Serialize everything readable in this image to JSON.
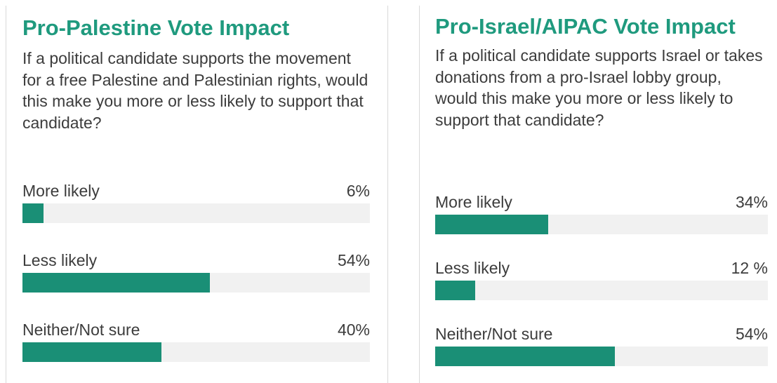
{
  "colors": {
    "accent": "#1f9a7e",
    "bar": "#1a8f76",
    "track": "#f1f1f1",
    "text": "#3c3c3c"
  },
  "chart_data": [
    {
      "type": "bar",
      "orientation": "horizontal",
      "title": "Pro-Palestine Vote Impact",
      "question": "If a political candidate supports the movement for a free Palestine and Palestinian rights, would this make you more or less likely to support that candidate?",
      "categories": [
        "More likely",
        "Less likely",
        "Neither/Not sure"
      ],
      "values": [
        6,
        54,
        40
      ],
      "value_labels": [
        "6%",
        "54%",
        "40%"
      ],
      "xlim": [
        0,
        100
      ]
    },
    {
      "type": "bar",
      "orientation": "horizontal",
      "title": "Pro-Israel/AIPAC Vote Impact",
      "question": "If a political candidate supports Israel or takes donations from a pro-Israel lobby group, would this make you more or less likely to support that candidate?",
      "categories": [
        "More likely",
        "Less likely",
        "Neither/Not sure"
      ],
      "values": [
        34,
        12,
        54
      ],
      "value_labels": [
        "34%",
        "12 %",
        "54%"
      ],
      "xlim": [
        0,
        100
      ]
    }
  ]
}
